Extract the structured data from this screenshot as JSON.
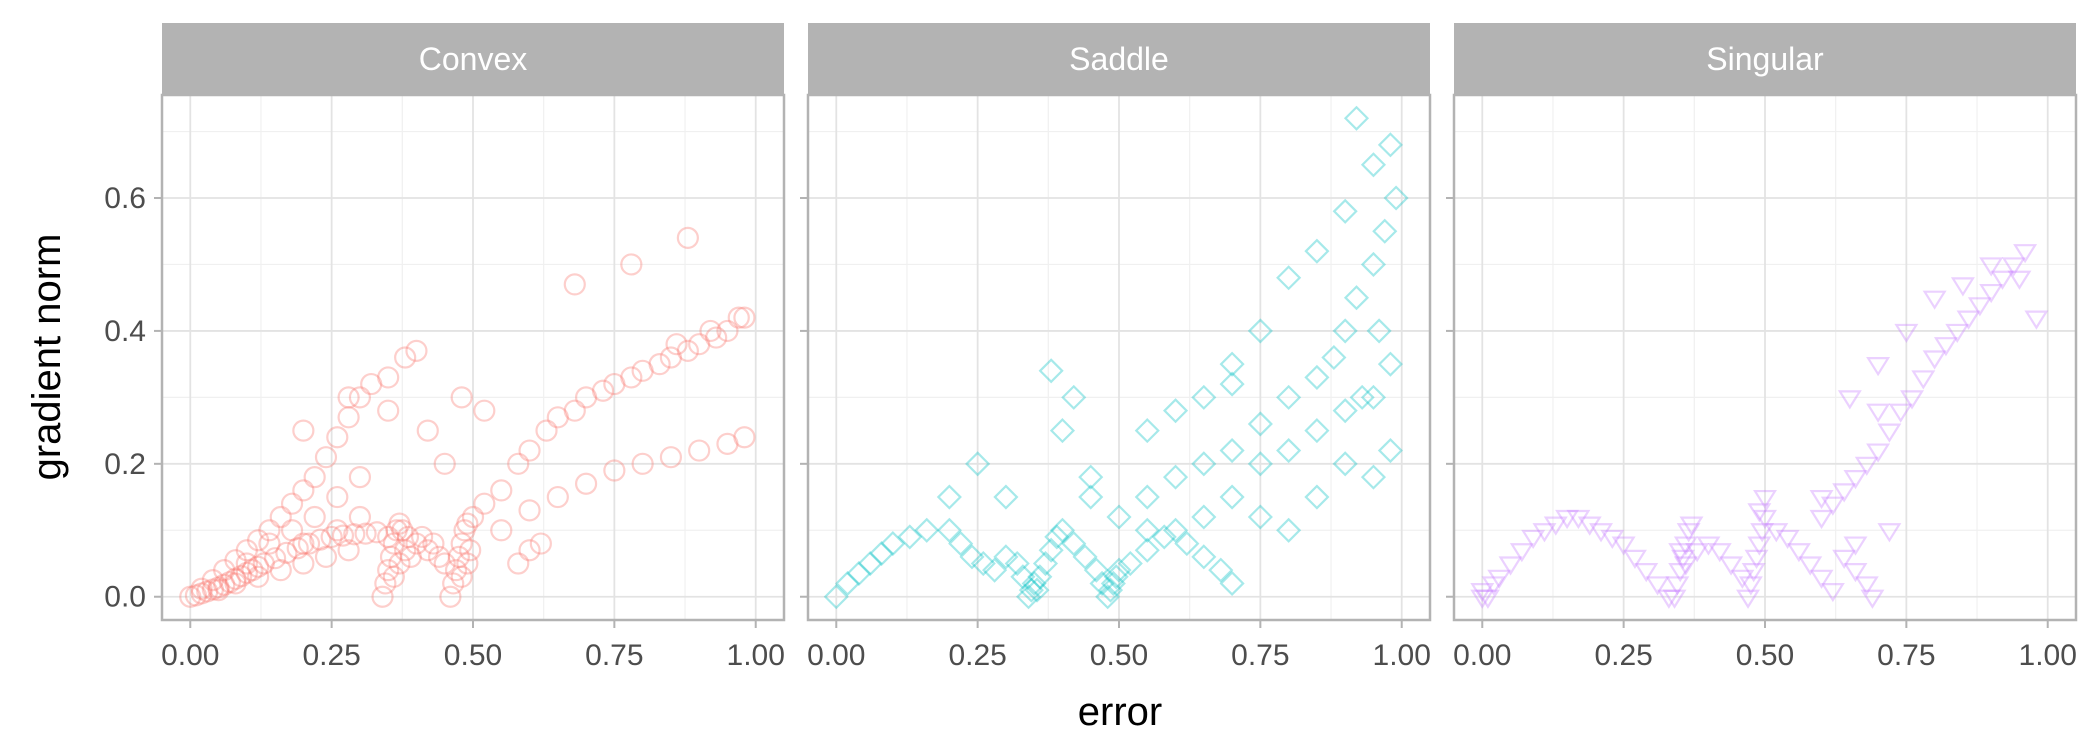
{
  "chart_data": {
    "type": "scatter",
    "xlabel": "error",
    "ylabel": "gradient norm",
    "xlim": [
      -0.05,
      1.05
    ],
    "ylim": [
      -0.035,
      0.755
    ],
    "x_ticks": [
      0.0,
      0.25,
      0.5,
      0.75,
      1.0
    ],
    "x_tick_labels": [
      "0.00",
      "0.25",
      "0.50",
      "0.75",
      "1.00"
    ],
    "y_ticks": [
      0.0,
      0.2,
      0.4,
      0.6
    ],
    "y_tick_labels": [
      "0.0",
      "0.2",
      "0.4",
      "0.6"
    ],
    "grid": true,
    "panels": [
      {
        "name": "Convex",
        "marker": "circle",
        "color": "#F8766D",
        "points": [
          [
            0.0,
            0.0
          ],
          [
            0.01,
            0.002
          ],
          [
            0.02,
            0.005
          ],
          [
            0.03,
            0.008
          ],
          [
            0.04,
            0.011
          ],
          [
            0.05,
            0.014
          ],
          [
            0.06,
            0.018
          ],
          [
            0.07,
            0.022
          ],
          [
            0.08,
            0.027
          ],
          [
            0.09,
            0.031
          ],
          [
            0.1,
            0.036
          ],
          [
            0.11,
            0.04
          ],
          [
            0.12,
            0.045
          ],
          [
            0.13,
            0.05
          ],
          [
            0.15,
            0.058
          ],
          [
            0.17,
            0.066
          ],
          [
            0.19,
            0.073
          ],
          [
            0.21,
            0.08
          ],
          [
            0.23,
            0.086
          ],
          [
            0.25,
            0.09
          ],
          [
            0.27,
            0.092
          ],
          [
            0.29,
            0.094
          ],
          [
            0.31,
            0.095
          ],
          [
            0.33,
            0.097
          ],
          [
            0.02,
            0.012
          ],
          [
            0.04,
            0.025
          ],
          [
            0.06,
            0.04
          ],
          [
            0.08,
            0.055
          ],
          [
            0.1,
            0.07
          ],
          [
            0.12,
            0.085
          ],
          [
            0.14,
            0.1
          ],
          [
            0.16,
            0.12
          ],
          [
            0.18,
            0.14
          ],
          [
            0.2,
            0.16
          ],
          [
            0.22,
            0.18
          ],
          [
            0.24,
            0.21
          ],
          [
            0.26,
            0.24
          ],
          [
            0.28,
            0.27
          ],
          [
            0.3,
            0.3
          ],
          [
            0.32,
            0.32
          ],
          [
            0.35,
            0.33
          ],
          [
            0.38,
            0.36
          ],
          [
            0.4,
            0.37
          ],
          [
            0.05,
            0.01
          ],
          [
            0.08,
            0.02
          ],
          [
            0.12,
            0.03
          ],
          [
            0.16,
            0.04
          ],
          [
            0.2,
            0.05
          ],
          [
            0.24,
            0.06
          ],
          [
            0.28,
            0.07
          ],
          [
            0.18,
            0.1
          ],
          [
            0.22,
            0.12
          ],
          [
            0.26,
            0.15
          ],
          [
            0.3,
            0.18
          ],
          [
            0.14,
            0.08
          ],
          [
            0.1,
            0.05
          ],
          [
            0.2,
            0.08
          ],
          [
            0.26,
            0.1
          ],
          [
            0.3,
            0.12
          ],
          [
            0.34,
            0.0
          ],
          [
            0.345,
            0.02
          ],
          [
            0.35,
            0.04
          ],
          [
            0.355,
            0.06
          ],
          [
            0.36,
            0.08
          ],
          [
            0.365,
            0.1
          ],
          [
            0.37,
            0.11
          ],
          [
            0.35,
            0.09
          ],
          [
            0.36,
            0.03
          ],
          [
            0.37,
            0.05
          ],
          [
            0.38,
            0.07
          ],
          [
            0.375,
            0.1
          ],
          [
            0.385,
            0.09
          ],
          [
            0.39,
            0.06
          ],
          [
            0.4,
            0.08
          ],
          [
            0.41,
            0.09
          ],
          [
            0.42,
            0.07
          ],
          [
            0.43,
            0.08
          ],
          [
            0.44,
            0.06
          ],
          [
            0.45,
            0.05
          ],
          [
            0.46,
            0.0
          ],
          [
            0.465,
            0.02
          ],
          [
            0.47,
            0.04
          ],
          [
            0.475,
            0.06
          ],
          [
            0.48,
            0.08
          ],
          [
            0.485,
            0.1
          ],
          [
            0.49,
            0.11
          ],
          [
            0.48,
            0.03
          ],
          [
            0.49,
            0.05
          ],
          [
            0.495,
            0.07
          ],
          [
            0.5,
            0.12
          ],
          [
            0.52,
            0.14
          ],
          [
            0.55,
            0.16
          ],
          [
            0.58,
            0.2
          ],
          [
            0.6,
            0.22
          ],
          [
            0.63,
            0.25
          ],
          [
            0.65,
            0.27
          ],
          [
            0.68,
            0.28
          ],
          [
            0.7,
            0.3
          ],
          [
            0.73,
            0.31
          ],
          [
            0.75,
            0.32
          ],
          [
            0.78,
            0.33
          ],
          [
            0.8,
            0.34
          ],
          [
            0.83,
            0.35
          ],
          [
            0.85,
            0.36
          ],
          [
            0.88,
            0.37
          ],
          [
            0.9,
            0.38
          ],
          [
            0.93,
            0.39
          ],
          [
            0.95,
            0.4
          ],
          [
            0.98,
            0.42
          ],
          [
            0.55,
            0.1
          ],
          [
            0.6,
            0.13
          ],
          [
            0.65,
            0.15
          ],
          [
            0.7,
            0.17
          ],
          [
            0.75,
            0.19
          ],
          [
            0.8,
            0.2
          ],
          [
            0.85,
            0.21
          ],
          [
            0.9,
            0.22
          ],
          [
            0.95,
            0.23
          ],
          [
            0.98,
            0.24
          ],
          [
            0.6,
            0.07
          ],
          [
            0.62,
            0.08
          ],
          [
            0.58,
            0.05
          ],
          [
            0.45,
            0.2
          ],
          [
            0.42,
            0.25
          ],
          [
            0.48,
            0.3
          ],
          [
            0.52,
            0.28
          ],
          [
            0.68,
            0.47
          ],
          [
            0.78,
            0.5
          ],
          [
            0.88,
            0.54
          ],
          [
            0.97,
            0.42
          ],
          [
            0.92,
            0.4
          ],
          [
            0.86,
            0.38
          ],
          [
            0.2,
            0.25
          ],
          [
            0.28,
            0.3
          ],
          [
            0.35,
            0.28
          ]
        ]
      },
      {
        "name": "Saddle",
        "marker": "diamond",
        "color": "#00BFC4",
        "points": [
          [
            0.0,
            0.0
          ],
          [
            0.02,
            0.02
          ],
          [
            0.04,
            0.035
          ],
          [
            0.06,
            0.05
          ],
          [
            0.08,
            0.065
          ],
          [
            0.1,
            0.08
          ],
          [
            0.13,
            0.09
          ],
          [
            0.16,
            0.1
          ],
          [
            0.2,
            0.1
          ],
          [
            0.22,
            0.08
          ],
          [
            0.24,
            0.06
          ],
          [
            0.26,
            0.05
          ],
          [
            0.28,
            0.04
          ],
          [
            0.3,
            0.06
          ],
          [
            0.32,
            0.05
          ],
          [
            0.33,
            0.03
          ],
          [
            0.34,
            0.0
          ],
          [
            0.345,
            0.01
          ],
          [
            0.35,
            0.02
          ],
          [
            0.355,
            0.01
          ],
          [
            0.36,
            0.03
          ],
          [
            0.37,
            0.05
          ],
          [
            0.38,
            0.07
          ],
          [
            0.39,
            0.09
          ],
          [
            0.4,
            0.1
          ],
          [
            0.42,
            0.08
          ],
          [
            0.44,
            0.06
          ],
          [
            0.46,
            0.04
          ],
          [
            0.47,
            0.02
          ],
          [
            0.48,
            0.0
          ],
          [
            0.485,
            0.01
          ],
          [
            0.49,
            0.02
          ],
          [
            0.495,
            0.03
          ],
          [
            0.5,
            0.04
          ],
          [
            0.52,
            0.05
          ],
          [
            0.55,
            0.07
          ],
          [
            0.58,
            0.09
          ],
          [
            0.6,
            0.1
          ],
          [
            0.62,
            0.08
          ],
          [
            0.65,
            0.06
          ],
          [
            0.68,
            0.04
          ],
          [
            0.7,
            0.02
          ],
          [
            0.55,
            0.15
          ],
          [
            0.6,
            0.18
          ],
          [
            0.65,
            0.2
          ],
          [
            0.7,
            0.22
          ],
          [
            0.75,
            0.26
          ],
          [
            0.8,
            0.3
          ],
          [
            0.85,
            0.33
          ],
          [
            0.88,
            0.36
          ],
          [
            0.9,
            0.4
          ],
          [
            0.92,
            0.45
          ],
          [
            0.95,
            0.5
          ],
          [
            0.97,
            0.55
          ],
          [
            0.99,
            0.6
          ],
          [
            0.7,
            0.35
          ],
          [
            0.75,
            0.4
          ],
          [
            0.8,
            0.48
          ],
          [
            0.85,
            0.52
          ],
          [
            0.9,
            0.58
          ],
          [
            0.95,
            0.65
          ],
          [
            0.98,
            0.68
          ],
          [
            0.92,
            0.72
          ],
          [
            0.55,
            0.25
          ],
          [
            0.6,
            0.28
          ],
          [
            0.65,
            0.3
          ],
          [
            0.7,
            0.32
          ],
          [
            0.75,
            0.2
          ],
          [
            0.8,
            0.22
          ],
          [
            0.85,
            0.25
          ],
          [
            0.9,
            0.28
          ],
          [
            0.95,
            0.3
          ],
          [
            0.98,
            0.22
          ],
          [
            0.45,
            0.15
          ],
          [
            0.5,
            0.12
          ],
          [
            0.55,
            0.1
          ],
          [
            0.4,
            0.25
          ],
          [
            0.42,
            0.3
          ],
          [
            0.38,
            0.34
          ],
          [
            0.45,
            0.18
          ],
          [
            0.3,
            0.15
          ],
          [
            0.25,
            0.2
          ],
          [
            0.2,
            0.15
          ],
          [
            0.65,
            0.12
          ],
          [
            0.7,
            0.15
          ],
          [
            0.75,
            0.12
          ],
          [
            0.8,
            0.1
          ],
          [
            0.85,
            0.15
          ],
          [
            0.9,
            0.2
          ],
          [
            0.95,
            0.18
          ],
          [
            0.98,
            0.35
          ],
          [
            0.96,
            0.4
          ],
          [
            0.93,
            0.3
          ]
        ]
      },
      {
        "name": "Singular",
        "marker": "triangle-down",
        "color": "#C77CFF",
        "points": [
          [
            0.0,
            0.0
          ],
          [
            0.0,
            0.01
          ],
          [
            0.01,
            0.0
          ],
          [
            0.02,
            0.02
          ],
          [
            0.03,
            0.03
          ],
          [
            0.05,
            0.05
          ],
          [
            0.07,
            0.07
          ],
          [
            0.09,
            0.09
          ],
          [
            0.11,
            0.1
          ],
          [
            0.13,
            0.11
          ],
          [
            0.15,
            0.12
          ],
          [
            0.17,
            0.12
          ],
          [
            0.19,
            0.11
          ],
          [
            0.21,
            0.1
          ],
          [
            0.23,
            0.09
          ],
          [
            0.25,
            0.08
          ],
          [
            0.27,
            0.06
          ],
          [
            0.29,
            0.04
          ],
          [
            0.31,
            0.02
          ],
          [
            0.33,
            0.0
          ],
          [
            0.34,
            0.0
          ],
          [
            0.345,
            0.02
          ],
          [
            0.35,
            0.04
          ],
          [
            0.355,
            0.06
          ],
          [
            0.36,
            0.08
          ],
          [
            0.365,
            0.1
          ],
          [
            0.37,
            0.11
          ],
          [
            0.36,
            0.05
          ],
          [
            0.35,
            0.07
          ],
          [
            0.38,
            0.07
          ],
          [
            0.4,
            0.08
          ],
          [
            0.42,
            0.07
          ],
          [
            0.44,
            0.05
          ],
          [
            0.46,
            0.03
          ],
          [
            0.47,
            0.0
          ],
          [
            0.475,
            0.02
          ],
          [
            0.48,
            0.04
          ],
          [
            0.485,
            0.06
          ],
          [
            0.49,
            0.08
          ],
          [
            0.495,
            0.1
          ],
          [
            0.5,
            0.12
          ],
          [
            0.5,
            0.15
          ],
          [
            0.49,
            0.13
          ],
          [
            0.52,
            0.1
          ],
          [
            0.54,
            0.09
          ],
          [
            0.56,
            0.07
          ],
          [
            0.58,
            0.05
          ],
          [
            0.6,
            0.03
          ],
          [
            0.62,
            0.01
          ],
          [
            0.64,
            0.06
          ],
          [
            0.66,
            0.04
          ],
          [
            0.68,
            0.02
          ],
          [
            0.69,
            0.0
          ],
          [
            0.6,
            0.12
          ],
          [
            0.62,
            0.14
          ],
          [
            0.64,
            0.16
          ],
          [
            0.66,
            0.18
          ],
          [
            0.68,
            0.2
          ],
          [
            0.7,
            0.22
          ],
          [
            0.72,
            0.25
          ],
          [
            0.74,
            0.28
          ],
          [
            0.76,
            0.3
          ],
          [
            0.78,
            0.33
          ],
          [
            0.8,
            0.36
          ],
          [
            0.82,
            0.38
          ],
          [
            0.84,
            0.4
          ],
          [
            0.86,
            0.42
          ],
          [
            0.88,
            0.44
          ],
          [
            0.9,
            0.46
          ],
          [
            0.92,
            0.48
          ],
          [
            0.94,
            0.5
          ],
          [
            0.96,
            0.52
          ],
          [
            0.7,
            0.35
          ],
          [
            0.75,
            0.4
          ],
          [
            0.8,
            0.45
          ],
          [
            0.85,
            0.47
          ],
          [
            0.9,
            0.5
          ],
          [
            0.95,
            0.48
          ],
          [
            0.98,
            0.42
          ],
          [
            0.65,
            0.3
          ],
          [
            0.7,
            0.28
          ],
          [
            0.72,
            0.1
          ],
          [
            0.66,
            0.08
          ],
          [
            0.6,
            0.15
          ]
        ]
      }
    ]
  }
}
